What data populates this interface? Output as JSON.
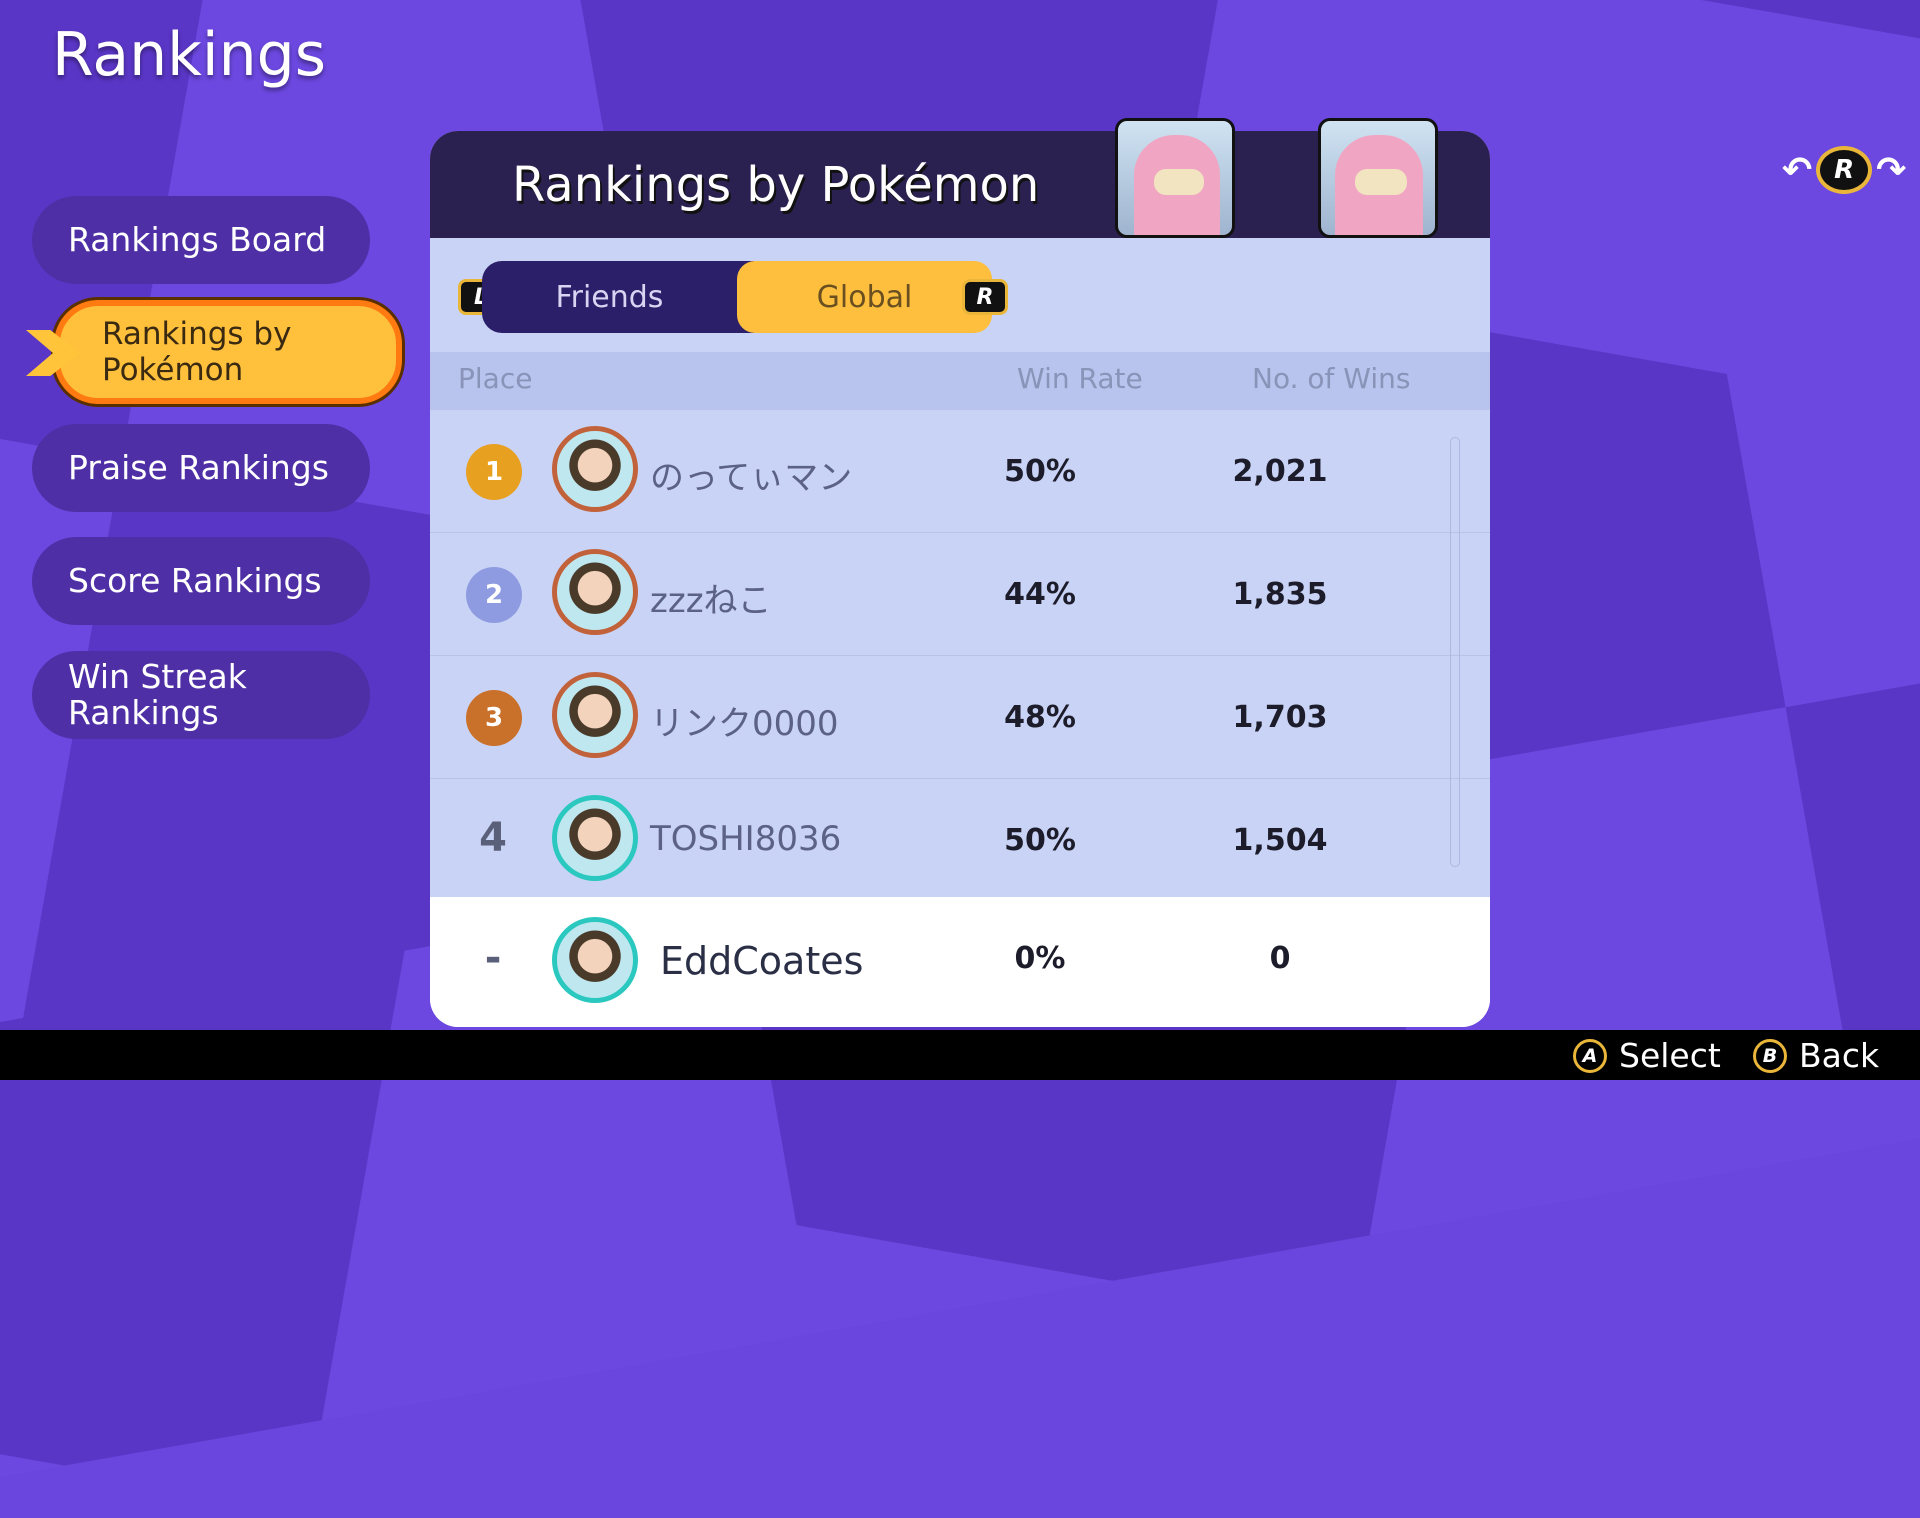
{
  "screen_title": "Rankings",
  "sidebar": {
    "items": [
      {
        "label": "Rankings Board"
      },
      {
        "label": "Rankings by Pokémon",
        "selected": true
      },
      {
        "label": "Praise Rankings"
      },
      {
        "label": "Score Rankings"
      },
      {
        "label": "Win Streak Rankings"
      }
    ]
  },
  "panel": {
    "title": "Rankings by Pokémon",
    "pokemon_icon": "slowpoke-portrait",
    "tabs": [
      {
        "label": "Friends"
      },
      {
        "label": "Global",
        "active": true
      }
    ],
    "shoulder_left": "L",
    "shoulder_right": "R",
    "columns": {
      "place": "Place",
      "win_rate": "Win Rate",
      "wins": "No. of Wins"
    },
    "rows": [
      {
        "place": "1",
        "name": "のってぃマン",
        "win_rate": "50%",
        "wins": "2,021",
        "medal": "gold"
      },
      {
        "place": "2",
        "name": "zzzねこ",
        "win_rate": "44%",
        "wins": "1,835",
        "medal": "silver"
      },
      {
        "place": "3",
        "name": "リンク0000",
        "win_rate": "48%",
        "wins": "1,703",
        "medal": "bronze"
      },
      {
        "place": "4",
        "name": "TOSHI8036",
        "win_rate": "50%",
        "wins": "1,504"
      }
    ],
    "self": {
      "place": "-",
      "name": "EddCoates",
      "win_rate": "0%",
      "wins": "0"
    }
  },
  "rotate_hint": "R",
  "footer": {
    "a_key": "A",
    "select": "Select",
    "b_key": "B",
    "back": "Back"
  },
  "colors": {
    "accent": "#ffc03c",
    "panel_header": "#2a2150",
    "background": "#6442d8"
  }
}
